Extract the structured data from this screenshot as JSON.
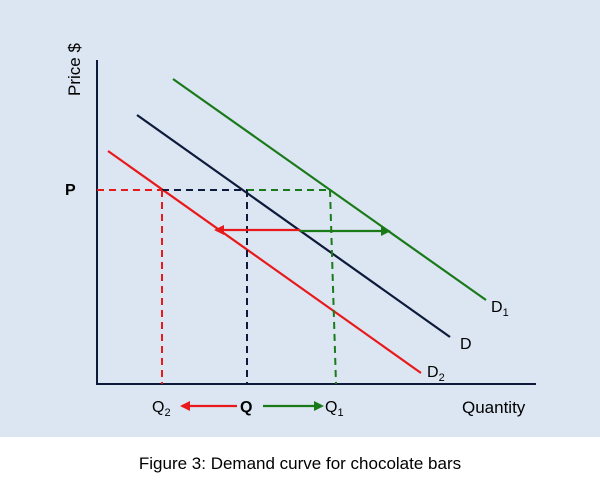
{
  "axes": {
    "y_label": "Price $",
    "x_label": "Quantity",
    "price_label": "P",
    "quantity_label": "Q"
  },
  "curves": {
    "d1": {
      "base": "D",
      "sub": "1",
      "color": "#1a7a1a",
      "quantity_label_base": "Q",
      "quantity_label_sub": "1"
    },
    "d": {
      "base": "D",
      "sub": "",
      "color": "#0d1a3a"
    },
    "d2": {
      "base": "D",
      "sub": "2",
      "color": "#e8191b",
      "quantity_label_base": "Q",
      "quantity_label_sub": "2"
    }
  },
  "caption": "Figure 3: Demand curve for chocolate bars"
}
